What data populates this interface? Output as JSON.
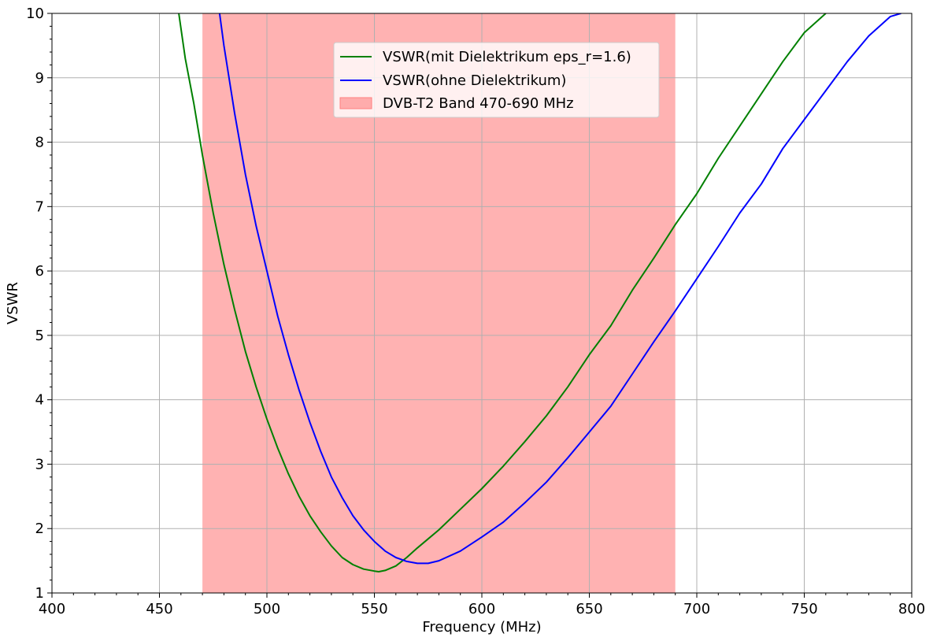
{
  "chart_data": {
    "type": "line",
    "xlabel": "Frequency (MHz)",
    "ylabel": "VSWR",
    "xlim": [
      400,
      800
    ],
    "ylim": [
      1,
      10
    ],
    "x_ticks": [
      "400",
      "450",
      "500",
      "550",
      "600",
      "650",
      "700",
      "750",
      "800"
    ],
    "y_ticks": [
      "1",
      "2",
      "3",
      "4",
      "5",
      "6",
      "7",
      "8",
      "9",
      "10"
    ],
    "grid": true,
    "legend_position": "top-center",
    "band": {
      "name": "DVB-T2 Band 470-690 MHz",
      "x_start": 470,
      "x_end": 690,
      "color": "#ff7f7f"
    },
    "series": [
      {
        "name": "VSWR(mit Dielektrikum eps_r=1.6)",
        "color": "#008000",
        "x": [
          459,
          462,
          466,
          470,
          475,
          480,
          485,
          490,
          495,
          500,
          505,
          510,
          515,
          520,
          525,
          530,
          535,
          540,
          545,
          550,
          552,
          555,
          560,
          565,
          570,
          575,
          580,
          590,
          600,
          610,
          620,
          630,
          640,
          650,
          660,
          670,
          680,
          690,
          700,
          710,
          720,
          730,
          740,
          750,
          760
        ],
        "values": [
          10.0,
          9.3,
          8.6,
          7.8,
          6.9,
          6.1,
          5.4,
          4.75,
          4.2,
          3.7,
          3.25,
          2.85,
          2.5,
          2.2,
          1.95,
          1.73,
          1.55,
          1.44,
          1.37,
          1.34,
          1.33,
          1.35,
          1.42,
          1.55,
          1.7,
          1.84,
          1.98,
          2.3,
          2.62,
          2.97,
          3.35,
          3.75,
          4.2,
          4.7,
          5.15,
          5.7,
          6.2,
          6.72,
          7.2,
          7.75,
          8.25,
          8.75,
          9.25,
          9.7,
          10.0
        ]
      },
      {
        "name": "VSWR(ohne Dielektrikum)",
        "color": "#0000ff",
        "x": [
          478,
          480,
          485,
          490,
          495,
          500,
          505,
          510,
          515,
          520,
          525,
          530,
          535,
          540,
          545,
          550,
          555,
          560,
          565,
          570,
          575,
          580,
          590,
          600,
          610,
          620,
          630,
          640,
          650,
          660,
          670,
          680,
          690,
          700,
          710,
          720,
          730,
          740,
          750,
          760,
          770,
          780,
          790,
          795
        ],
        "values": [
          10.0,
          9.5,
          8.45,
          7.5,
          6.7,
          6.0,
          5.3,
          4.7,
          4.15,
          3.65,
          3.2,
          2.8,
          2.48,
          2.2,
          1.98,
          1.8,
          1.65,
          1.55,
          1.49,
          1.46,
          1.46,
          1.5,
          1.65,
          1.87,
          2.1,
          2.4,
          2.72,
          3.1,
          3.5,
          3.9,
          4.4,
          4.9,
          5.38,
          5.88,
          6.38,
          6.9,
          7.35,
          7.9,
          8.35,
          8.8,
          9.25,
          9.65,
          9.95,
          10.0
        ]
      }
    ]
  }
}
